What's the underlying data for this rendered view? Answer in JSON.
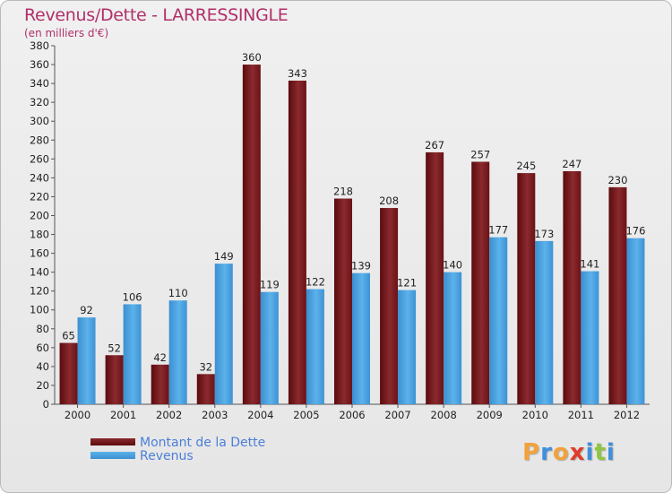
{
  "header": {
    "title": "Revenus/Dette - LARRESSINGLE",
    "subtitle": "(en milliers d'€)"
  },
  "legend": [
    {
      "label": "Montant de la Dette",
      "color": "#6e0f12"
    },
    {
      "label": "Revenus",
      "color": "#4aa2e0"
    }
  ],
  "brand": {
    "letters": [
      "P",
      "r",
      "o",
      "x",
      "i",
      "t",
      "i"
    ],
    "colors": [
      "#f2a23a",
      "#3f8fdc",
      "#f2a23a",
      "#e03c2c",
      "#3f8fdc",
      "#8ec63f",
      "#3f8fdc"
    ]
  },
  "chart_data": {
    "type": "bar",
    "title": "Revenus/Dette - LARRESSINGLE",
    "subtitle": "(en milliers d'€)",
    "categories": [
      "2000",
      "2001",
      "2002",
      "2003",
      "2004",
      "2005",
      "2006",
      "2007",
      "2008",
      "2009",
      "2010",
      "2011",
      "2012"
    ],
    "series": [
      {
        "name": "Montant de la Dette",
        "color": "#7a1a1e",
        "values": [
          65,
          52,
          42,
          32,
          360,
          343,
          218,
          208,
          267,
          257,
          245,
          247,
          230
        ]
      },
      {
        "name": "Revenus",
        "color": "#4aa2e0",
        "values": [
          92,
          106,
          110,
          149,
          119,
          122,
          139,
          121,
          140,
          177,
          173,
          141,
          176
        ]
      }
    ],
    "ylim": [
      0,
      380
    ],
    "ytick_step": 20,
    "grid": false,
    "data_labels": true,
    "legend_position": "bottom-left"
  }
}
